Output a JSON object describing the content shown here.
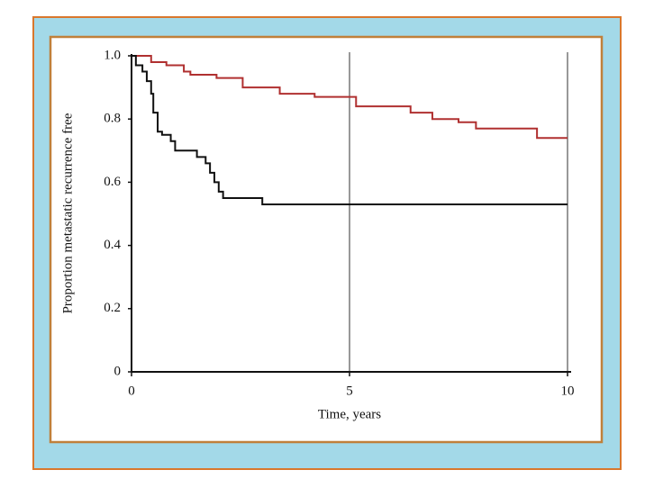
{
  "chart_data": {
    "type": "step",
    "y_label": "Proportion metastatic recurrence free",
    "x_label": "Time, years",
    "xlim": [
      0,
      10
    ],
    "ylim": [
      0,
      1
    ],
    "xticks": [
      0,
      5,
      10
    ],
    "yticks": [
      0,
      0.2,
      0.4,
      0.6,
      0.8,
      {
        "value": 1,
        "label": "1.0"
      }
    ],
    "grid_x": true,
    "series": [
      {
        "color": "#b03030",
        "x": [
          0,
          0.45,
          0.8,
          1.2,
          1.35,
          1.95,
          2.55,
          3.4,
          4.2,
          5.15,
          6.4,
          6.9,
          7.5,
          7.9,
          9.3,
          10
        ],
        "values": [
          1,
          0.98,
          0.97,
          0.95,
          0.94,
          0.93,
          0.9,
          0.88,
          0.87,
          0.84,
          0.82,
          0.8,
          0.79,
          0.77,
          0.74,
          0.74
        ]
      },
      {
        "color": "#111111",
        "x": [
          0,
          0.1,
          0.25,
          0.35,
          0.45,
          0.5,
          0.6,
          0.7,
          0.9,
          1.0,
          1.5,
          1.7,
          1.8,
          1.9,
          2.0,
          2.1,
          3.0,
          10
        ],
        "values": [
          1,
          0.97,
          0.95,
          0.92,
          0.88,
          0.82,
          0.76,
          0.75,
          0.73,
          0.7,
          0.68,
          0.66,
          0.63,
          0.6,
          0.57,
          0.55,
          0.53,
          0.53
        ]
      }
    ]
  }
}
